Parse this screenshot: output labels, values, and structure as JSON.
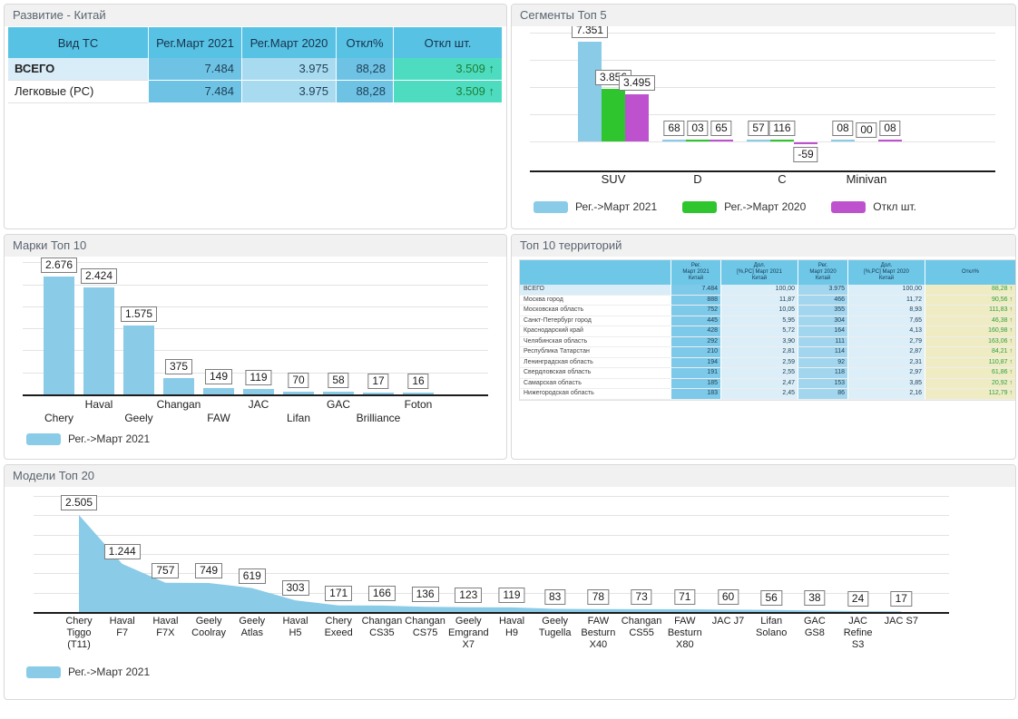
{
  "panels": {
    "development": {
      "title": "Развитие - Китай",
      "table": {
        "col_headers": [
          "Вид ТС",
          "Рег.|Март 2021",
          "Рег.|Март 2020",
          "Откл%",
          "Откл шт."
        ],
        "rows": [
          {
            "name": "ВСЕГО",
            "bold": true,
            "reg_2021": "7.484",
            "reg_2020": "3.975",
            "dev_pct": "88,28",
            "dev_units": "3.509",
            "dev_dir": "up"
          },
          {
            "name": "Легковые (PC)",
            "bold": false,
            "reg_2021": "7.484",
            "reg_2020": "3.975",
            "dev_pct": "88,28",
            "dev_units": "3.509",
            "dev_dir": "up"
          }
        ]
      }
    },
    "segments": {
      "title": "Сегменты Топ 5"
    },
    "brands": {
      "title": "Марки Топ 10"
    },
    "territories": {
      "title": "Топ 10 территорий",
      "table": {
        "col_headers": [
          "",
          "Рег.|Март 2021|Китай",
          "Дол.|[%,PC] Март 2021|Китай",
          "Рег.|Март 2020|Китай",
          "Дол.|[%,PC] Март 2020|Китай",
          "Откл%"
        ],
        "rows": [
          {
            "name": "ВСЕГО",
            "highlight": true,
            "reg_2021": "7.484",
            "share_2021": "100,00",
            "reg_2020": "3.975",
            "share_2020": "100,00",
            "dev_pct": "88,28",
            "dev_dir": "up"
          },
          {
            "name": "Москва город",
            "highlight": false,
            "reg_2021": "888",
            "share_2021": "11,87",
            "reg_2020": "466",
            "share_2020": "11,72",
            "dev_pct": "90,56",
            "dev_dir": "up"
          },
          {
            "name": "Московская область",
            "highlight": false,
            "reg_2021": "752",
            "share_2021": "10,05",
            "reg_2020": "355",
            "share_2020": "8,93",
            "dev_pct": "111,83",
            "dev_dir": "up"
          },
          {
            "name": "Санкт-Петербург город",
            "highlight": false,
            "reg_2021": "445",
            "share_2021": "5,95",
            "reg_2020": "304",
            "share_2020": "7,65",
            "dev_pct": "46,38",
            "dev_dir": "up"
          },
          {
            "name": "Краснодарский край",
            "highlight": false,
            "reg_2021": "428",
            "share_2021": "5,72",
            "reg_2020": "164",
            "share_2020": "4,13",
            "dev_pct": "160,98",
            "dev_dir": "up"
          },
          {
            "name": "Челябинская область",
            "highlight": false,
            "reg_2021": "292",
            "share_2021": "3,90",
            "reg_2020": "111",
            "share_2020": "2,79",
            "dev_pct": "163,06",
            "dev_dir": "up"
          },
          {
            "name": "Республика Татарстан",
            "highlight": false,
            "reg_2021": "210",
            "share_2021": "2,81",
            "reg_2020": "114",
            "share_2020": "2,87",
            "dev_pct": "84,21",
            "dev_dir": "up"
          },
          {
            "name": "Ленинградская область",
            "highlight": false,
            "reg_2021": "194",
            "share_2021": "2,59",
            "reg_2020": "92",
            "share_2020": "2,31",
            "dev_pct": "110,87",
            "dev_dir": "up"
          },
          {
            "name": "Свердловская область",
            "highlight": false,
            "reg_2021": "191",
            "share_2021": "2,55",
            "reg_2020": "118",
            "share_2020": "2,97",
            "dev_pct": "61,86",
            "dev_dir": "up"
          },
          {
            "name": "Самарская область",
            "highlight": false,
            "reg_2021": "185",
            "share_2021": "2,47",
            "reg_2020": "153",
            "share_2020": "3,85",
            "dev_pct": "20,92",
            "dev_dir": "up"
          },
          {
            "name": "Нижегородская область",
            "highlight": false,
            "reg_2021": "183",
            "share_2021": "2,45",
            "reg_2020": "86",
            "share_2020": "2,16",
            "dev_pct": "112,79",
            "dev_dir": "up"
          }
        ]
      }
    },
    "models": {
      "title": "Модели Топ 20"
    }
  },
  "chart_data": [
    {
      "id": "segments",
      "type": "bar",
      "title": "Сегменты Топ 5",
      "categories": [
        "SUV",
        "D",
        "C",
        "Minivan"
      ],
      "series": [
        {
          "name": "Рег.->Март 2021",
          "color": "#8ACBE8",
          "values": [
            7351,
            68,
            57,
            8
          ],
          "labels": [
            "7.351",
            "68",
            "57",
            "08"
          ]
        },
        {
          "name": "Рег.->Март 2020",
          "color": "#2EC52E",
          "values": [
            3856,
            3,
            116,
            0
          ],
          "labels": [
            "3.856",
            "03",
            "116",
            "00"
          ]
        },
        {
          "name": "Откл шт.",
          "color": "#BE52CE",
          "values": [
            3495,
            65,
            -59,
            8
          ],
          "labels": [
            "3.495",
            "65",
            "-59",
            "08"
          ]
        }
      ],
      "ylim": [
        0,
        8000
      ],
      "grid_step": 2000,
      "legend_position": "bottom"
    },
    {
      "id": "brands",
      "type": "bar",
      "title": "Марки Топ 10",
      "categories": [
        "Chery",
        "Haval",
        "Geely",
        "Changan",
        "FAW",
        "JAC",
        "Lifan",
        "GAC",
        "Brilliance",
        "Foton"
      ],
      "series": [
        {
          "name": "Рег.->Март 2021",
          "color": "#8ACBE8",
          "values": [
            2676,
            2424,
            1575,
            375,
            149,
            119,
            70,
            58,
            17,
            16
          ],
          "labels": [
            "2.676",
            "2.424",
            "1.575",
            "375",
            "149",
            "119",
            "70",
            "58",
            "17",
            "16"
          ]
        }
      ],
      "ylim": [
        0,
        3000
      ],
      "grid_step": 500,
      "legend_position": "bottom"
    },
    {
      "id": "models",
      "type": "area",
      "title": "Модели Топ 20",
      "categories": [
        "Chery|Tiggo|(T11)",
        "Haval|F7",
        "Haval|F7X",
        "Geely|Coolray",
        "Geely|Atlas",
        "Haval|H5",
        "Chery|Exeed",
        "Changan|CS35",
        "Changan|CS75",
        "Geely|Emgrand|X7",
        "Haval|H9",
        "Geely|Tugella",
        "FAW|Besturn|X40",
        "Changan|CS55",
        "FAW|Besturn|X80",
        "JAC J7",
        "Lifan|Solano",
        "GAC|GS8",
        "JAC|Refine|S3",
        "JAC S7"
      ],
      "series": [
        {
          "name": "Рег.->Март 2021",
          "color": "#8ACBE8",
          "values": [
            2505,
            1244,
            757,
            749,
            619,
            303,
            171,
            166,
            136,
            123,
            119,
            83,
            78,
            73,
            71,
            60,
            56,
            38,
            24,
            17
          ],
          "labels": [
            "2.505",
            "1.244",
            "757",
            "749",
            "619",
            "303",
            "171",
            "166",
            "136",
            "123",
            "119",
            "83",
            "78",
            "73",
            "71",
            "60",
            "56",
            "38",
            "24",
            "17"
          ]
        }
      ],
      "ylim": [
        0,
        3000
      ],
      "grid_step": 500,
      "legend_position": "bottom"
    }
  ],
  "glyphs": {
    "arrow_up": "↑"
  },
  "colors": {
    "bar_blue": "#8ACBE8",
    "bar_green": "#2EC52E",
    "bar_purple": "#BE52CE",
    "table_header_blue": "#57C2E3",
    "cell_blue_dark": "#6EC3E5",
    "cell_blue_light": "#A8DAF0",
    "dev_units_bg": "#4EDCC1",
    "territory_dev_bg": "#EFECC3",
    "positive_green": "#1E7E34"
  }
}
